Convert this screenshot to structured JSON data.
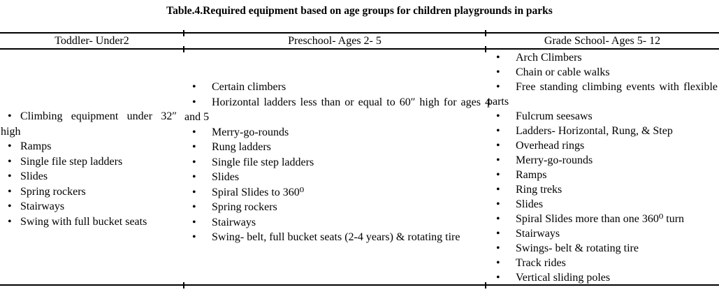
{
  "title": "Table.4.Required equipment based on age groups for children playgrounds in parks",
  "table": {
    "columns": [
      {
        "header": "Toddler- Under2",
        "items": [
          "Climbing equipment under 32″ high",
          "Ramps",
          "Single file step ladders",
          "Slides",
          "Spring rockers",
          "Stairways",
          "Swing with full bucket seats"
        ]
      },
      {
        "header": "Preschool- Ages 2- 5",
        "items": [
          "Certain climbers",
          "Horizontal ladders less than or equal to 60″ high for ages 4 and 5",
          "Merry-go-rounds",
          "Rung ladders",
          "Single file step ladders",
          "Slides",
          "Spiral Slides to 360⁰",
          "Spring rockers",
          "Stairways",
          "Swing- belt, full bucket seats (2-4 years) & rotating tire"
        ]
      },
      {
        "header": "Grade School- Ages 5- 12",
        "items": [
          "Arch Climbers",
          "Chain or cable walks",
          "Free standing climbing events with flexible parts",
          "Fulcrum seesaws",
          "Ladders- Horizontal, Rung, & Step",
          "Overhead rings",
          "Merry-go-rounds",
          "Ramps",
          "Ring treks",
          "Slides",
          "Spiral Slides more than one 360⁰ turn",
          "Stairways",
          "Swings- belt & rotating tire",
          "Track rides",
          "Vertical sliding poles"
        ]
      }
    ]
  }
}
